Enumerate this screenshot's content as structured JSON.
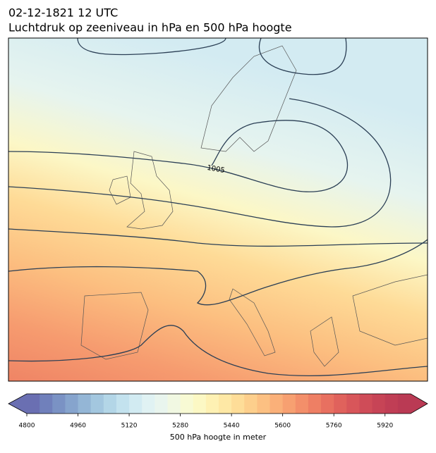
{
  "header": {
    "title_line1": "02-12-1821 12 UTC",
    "title_line2": "Luchtdruk op zeeniveau in hPa en 500 hPa hoogte"
  },
  "map": {
    "contour_label": "1005"
  },
  "colorbar": {
    "label": "500 hPa hoogte in meter",
    "range": [
      4800,
      6000
    ],
    "ticks": [
      4800,
      4960,
      5120,
      5280,
      5440,
      5600,
      5760,
      5920
    ],
    "extend": "both",
    "colors": [
      "#6a6fb2",
      "#7080bb",
      "#7a92c4",
      "#86a4cd",
      "#94b6d6",
      "#a3c7df",
      "#b3d6e7",
      "#c3e2ee",
      "#d2ebf2",
      "#e0f2f3",
      "#e9f5ee",
      "#f1f8e2",
      "#f8fad4",
      "#fcf8c4",
      "#fef1b3",
      "#fee8a5",
      "#fedd98",
      "#fdcf8c",
      "#fcc082",
      "#fab079",
      "#f7a071",
      "#f38f6a",
      "#ee7f64",
      "#e87060",
      "#e0625c",
      "#d8565a",
      "#cf4c58",
      "#c74456",
      "#c03e55",
      "#ba3a54"
    ]
  }
}
